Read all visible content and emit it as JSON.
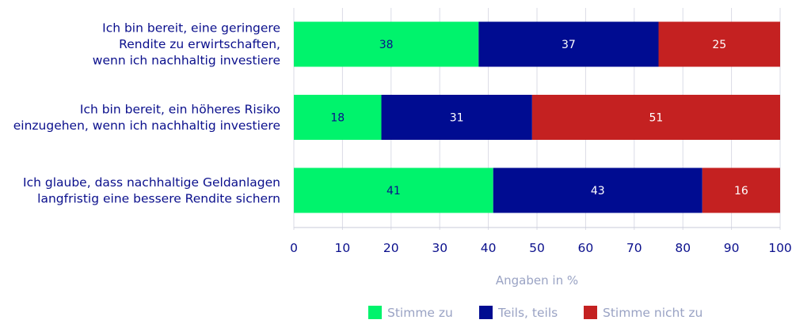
{
  "chart_data": {
    "type": "bar",
    "orientation": "horizontal",
    "stacked": true,
    "categories": [
      [
        "Ich bin bereit, eine geringere",
        "Rendite zu erwirtschaften,",
        "wenn ich nachhaltig investiere"
      ],
      [
        "Ich bin bereit, ein höheres Risiko",
        "einzugehen, wenn ich nachhaltig investiere"
      ],
      [
        "Ich glaube, dass nachhaltige Geldanlagen",
        "langfristig eine bessere Rendite sichern"
      ]
    ],
    "series": [
      {
        "name": "Stimme zu",
        "values": [
          38,
          18,
          41
        ],
        "color": "#00f36c",
        "label_color": "#0a0f8c"
      },
      {
        "name": "Teils, teils",
        "values": [
          37,
          31,
          43
        ],
        "color": "#000c91",
        "label_color": "#ffffff"
      },
      {
        "name": "Stimme nicht zu",
        "values": [
          25,
          51,
          16
        ],
        "color": "#c42121",
        "label_color": "#ffffff"
      }
    ],
    "xlabel": "Angaben in %",
    "xlim": [
      0,
      100
    ],
    "xticks": [
      0,
      10,
      20,
      30,
      40,
      50,
      60,
      70,
      80,
      90,
      100
    ],
    "grid": true,
    "legend_position": "bottom-right"
  }
}
